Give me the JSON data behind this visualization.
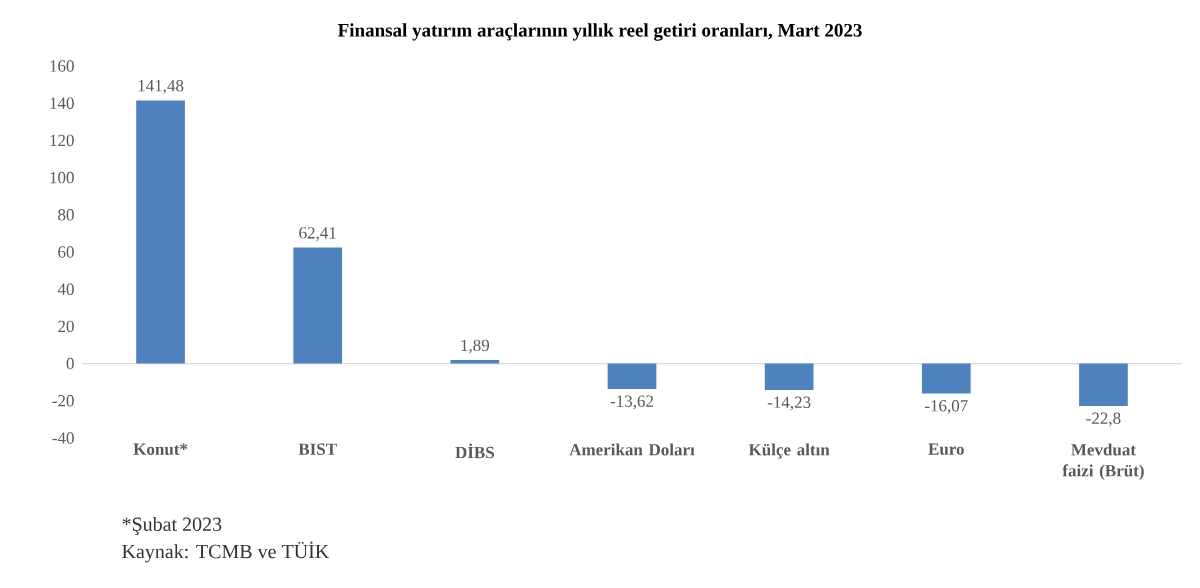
{
  "chart_data": {
    "type": "bar",
    "title": "Finansal yatırım araçlarının yıllık reel getiri oranları, Mart 2023",
    "categories": [
      "Konut*",
      "BIST",
      "DİBS",
      "Amerikan Doları",
      "Külçe altın",
      "Euro",
      "Mevduat faizi (Brüt)"
    ],
    "values": [
      141.48,
      62.41,
      1.89,
      -13.62,
      -14.23,
      -16.07,
      -22.8
    ],
    "value_labels": [
      "141,48",
      "62,41",
      "1,89",
      "-13,62",
      "-14,23",
      "-16,07",
      "-22,8"
    ],
    "color": "#4f81bd",
    "ylim": [
      -40,
      160
    ],
    "yticks": [
      -40,
      -20,
      0,
      20,
      40,
      60,
      80,
      100,
      120,
      140,
      160
    ],
    "annotations": [
      "*Şubat 2023",
      "Kaynak: TCMB ve TÜİK"
    ]
  }
}
